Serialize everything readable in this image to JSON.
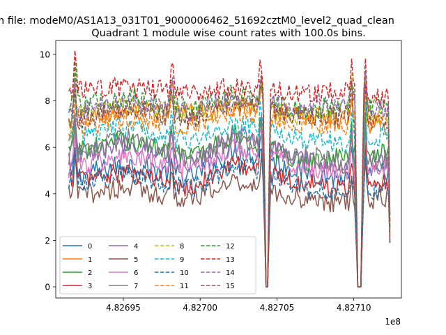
{
  "chart_data": {
    "type": "line",
    "suptitle": "n file: modeM0/AS1A13_031T01_9000006462_51692cztM0_level2_quad_clean",
    "title": "Quadrant 1 module wise count rates with 100.0s bins.",
    "xlabel": "",
    "ylabel": "",
    "offset_text": "1e8",
    "xlim": [
      4.826906,
      4.827131
    ],
    "ylim": [
      -0.48,
      10.6
    ],
    "x_ticks": [
      4.82695,
      4.827,
      4.82705,
      4.8271
    ],
    "x_tick_labels": [
      "4.82695",
      "4.82700",
      "4.82705",
      "4.82710"
    ],
    "y_ticks": [
      0,
      2,
      4,
      6,
      8,
      10
    ],
    "y_tick_labels": [
      "0",
      "2",
      "4",
      "6",
      "8",
      "10"
    ],
    "x_range": [
      4.8269145,
      4.8271235
    ],
    "bin_size_s": 100.0,
    "legend_location": "lower left",
    "gaps": [
      [
        4.827042,
        4.8270445
      ],
      [
        4.827102,
        4.8271055
      ]
    ],
    "series": [
      {
        "name": "0",
        "style": "solid",
        "color": "#1f77b4",
        "levels": [
          4.7,
          5.3,
          4.7,
          5.9,
          5.0,
          4.6,
          5.0
        ]
      },
      {
        "name": "1",
        "style": "solid",
        "color": "#ff7f0e",
        "levels": [
          7.0,
          7.6,
          7.5,
          7.8,
          7.4,
          7.2,
          6.8
        ]
      },
      {
        "name": "2",
        "style": "solid",
        "color": "#2ca02c",
        "levels": [
          5.8,
          6.3,
          5.6,
          6.6,
          5.4,
          5.6,
          5.9
        ]
      },
      {
        "name": "3",
        "style": "solid",
        "color": "#d62728",
        "levels": [
          4.6,
          4.9,
          4.3,
          5.3,
          4.5,
          4.2,
          4.6
        ]
      },
      {
        "name": "4",
        "style": "solid",
        "color": "#9467bd",
        "levels": [
          5.4,
          6.2,
          5.3,
          6.6,
          5.5,
          5.1,
          5.5
        ]
      },
      {
        "name": "5",
        "style": "solid",
        "color": "#8c564b",
        "levels": [
          3.9,
          4.3,
          3.7,
          4.6,
          3.8,
          3.6,
          3.9
        ]
      },
      {
        "name": "6",
        "style": "solid",
        "color": "#e377c2",
        "levels": [
          5.1,
          5.6,
          4.9,
          6.1,
          5.2,
          4.9,
          5.1
        ]
      },
      {
        "name": "7",
        "style": "solid",
        "color": "#7f7f7f",
        "levels": [
          5.6,
          6.4,
          5.5,
          6.4,
          5.7,
          5.3,
          5.5
        ]
      },
      {
        "name": "8",
        "style": "dashed",
        "color": "#bcbd22",
        "levels": [
          7.3,
          7.8,
          7.3,
          8.0,
          7.3,
          7.5,
          7.3
        ]
      },
      {
        "name": "9",
        "style": "dashed",
        "color": "#17becf",
        "levels": [
          6.5,
          6.9,
          6.3,
          7.0,
          6.4,
          6.2,
          6.5
        ]
      },
      {
        "name": "10",
        "style": "dashed",
        "color": "#1f77b4",
        "levels": [
          4.4,
          4.9,
          4.2,
          5.3,
          4.3,
          3.8,
          4.3
        ]
      },
      {
        "name": "11",
        "style": "dashed",
        "color": "#ff7f0e",
        "levels": [
          6.7,
          7.3,
          6.9,
          7.6,
          7.0,
          7.0,
          7.0
        ]
      },
      {
        "name": "12",
        "style": "dashed",
        "color": "#2ca02c",
        "levels": [
          7.7,
          8.2,
          7.6,
          8.3,
          7.6,
          7.8,
          7.6
        ]
      },
      {
        "name": "13",
        "style": "dashed",
        "color": "#d62728",
        "levels": [
          8.4,
          8.6,
          8.3,
          8.7,
          8.3,
          8.4,
          8.1
        ]
      },
      {
        "name": "14",
        "style": "dashed",
        "color": "#9467bd",
        "levels": [
          7.4,
          7.9,
          7.5,
          8.2,
          7.7,
          7.8,
          7.6
        ]
      },
      {
        "name": "15",
        "style": "dashed",
        "color": "#8c564b",
        "levels": [
          7.1,
          7.7,
          7.2,
          8.0,
          7.3,
          7.4,
          7.0
        ]
      }
    ]
  }
}
